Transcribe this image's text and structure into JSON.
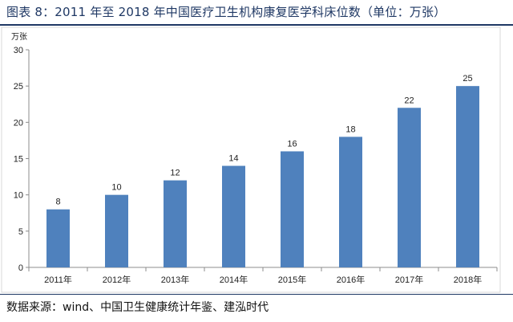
{
  "figure": {
    "title": "图表 8：2011 年至 2018 年中国医疗卫生机构康复医学科床位数（单位：万张）",
    "source": "数据来源：wind、中国卫生健康统计年鉴、建泓时代"
  },
  "chart_data": {
    "type": "bar",
    "title": "",
    "xlabel": "",
    "ylabel": "万张",
    "categories": [
      "2011年",
      "2012年",
      "2013年",
      "2014年",
      "2015年",
      "2016年",
      "2017年",
      "2018年"
    ],
    "values": [
      8,
      10,
      12,
      14,
      16,
      18,
      22,
      25
    ],
    "data_labels": [
      "8",
      "10",
      "12",
      "14",
      "16",
      "18",
      "22",
      "25"
    ],
    "ylim": [
      0,
      30
    ],
    "yticks": [
      0,
      5,
      10,
      15,
      20,
      25,
      30
    ],
    "grid": false,
    "legend": "none",
    "bar_color": "#4f81bd"
  }
}
